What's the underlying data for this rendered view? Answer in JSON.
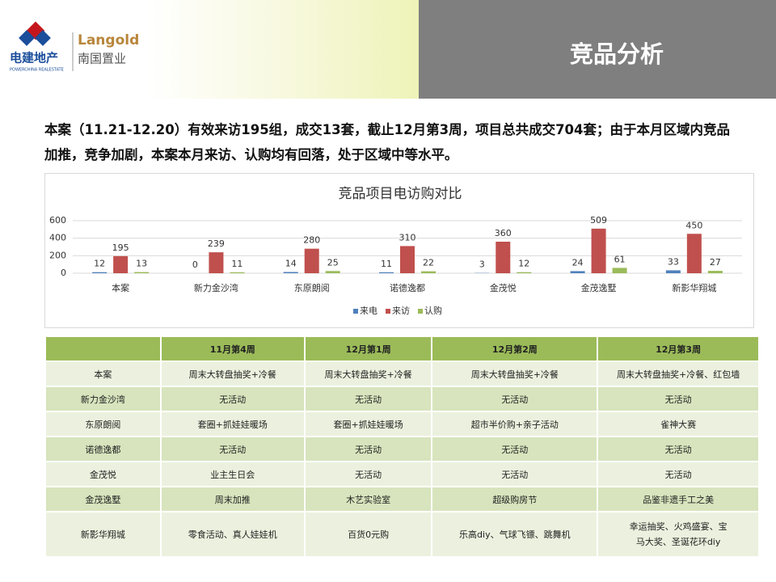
{
  "header": {
    "title": "竞品分析",
    "logo_cn": "电建地产",
    "logo_en": "POWERCHINA REALESTATE",
    "brand": "Langold",
    "brand_cn": "南国置业"
  },
  "summary": "本案（11.21-12.20）有效来访195组，成交13套，截止12月第3周，项目总共成交704套；由于本月区域内竞品加推，竞争加剧，本案本月来访、认购均有回落，处于区域中等水平。",
  "chart_data": {
    "type": "bar",
    "title": "竞品项目电访购对比",
    "categories": [
      "本案",
      "新力金沙湾",
      "东原朗阅",
      "诺德逸都",
      "金茂悦",
      "金茂逸墅",
      "新影华翔城"
    ],
    "series": [
      {
        "name": "来电",
        "color": "#4f81bd",
        "values": [
          12,
          0,
          14,
          11,
          3,
          24,
          33
        ]
      },
      {
        "name": "来访",
        "color": "#c0504d",
        "values": [
          195,
          239,
          280,
          310,
          360,
          509,
          450
        ]
      },
      {
        "name": "认购",
        "color": "#9bbb59",
        "values": [
          13,
          11,
          25,
          22,
          12,
          61,
          27
        ]
      }
    ],
    "ylim": [
      0,
      600
    ],
    "yticks": [
      0,
      200,
      400,
      600
    ],
    "grid": true,
    "legend": "bottom"
  },
  "table": {
    "columns": [
      "11月第4周",
      "12月第1周",
      "12月第2周",
      "12月第3周"
    ],
    "rows": [
      {
        "name": "本案",
        "cells": [
          "周末大转盘抽奖+冷餐",
          "周末大转盘抽奖+冷餐",
          "周末大转盘抽奖+冷餐",
          "周末大转盘抽奖+冷餐、红包墙"
        ]
      },
      {
        "name": "新力金沙湾",
        "cells": [
          "无活动",
          "无活动",
          "无活动",
          "无活动"
        ]
      },
      {
        "name": "东原朗阅",
        "cells": [
          "套圈+抓娃娃暖场",
          "套圈+抓娃娃暖场",
          "超市半价购+亲子活动",
          "雀神大赛"
        ]
      },
      {
        "name": "诺德逸都",
        "cells": [
          "无活动",
          "无活动",
          "无活动",
          "无活动"
        ]
      },
      {
        "name": "金茂悦",
        "cells": [
          "业主生日会",
          "无活动",
          "无活动",
          "无活动"
        ]
      },
      {
        "name": "金茂逸墅",
        "cells": [
          "周末加推",
          "木艺实验室",
          "超级购房节",
          "品鉴非遗手工之美"
        ]
      },
      {
        "name": "新影华翔城",
        "cells": [
          "零食活动、真人娃娃机",
          "百货0元购",
          "乐高diy、气球飞镖、跳舞机",
          "幸运抽奖、火鸡盛宴、宝马大奖、圣诞花环diy"
        ]
      }
    ]
  }
}
